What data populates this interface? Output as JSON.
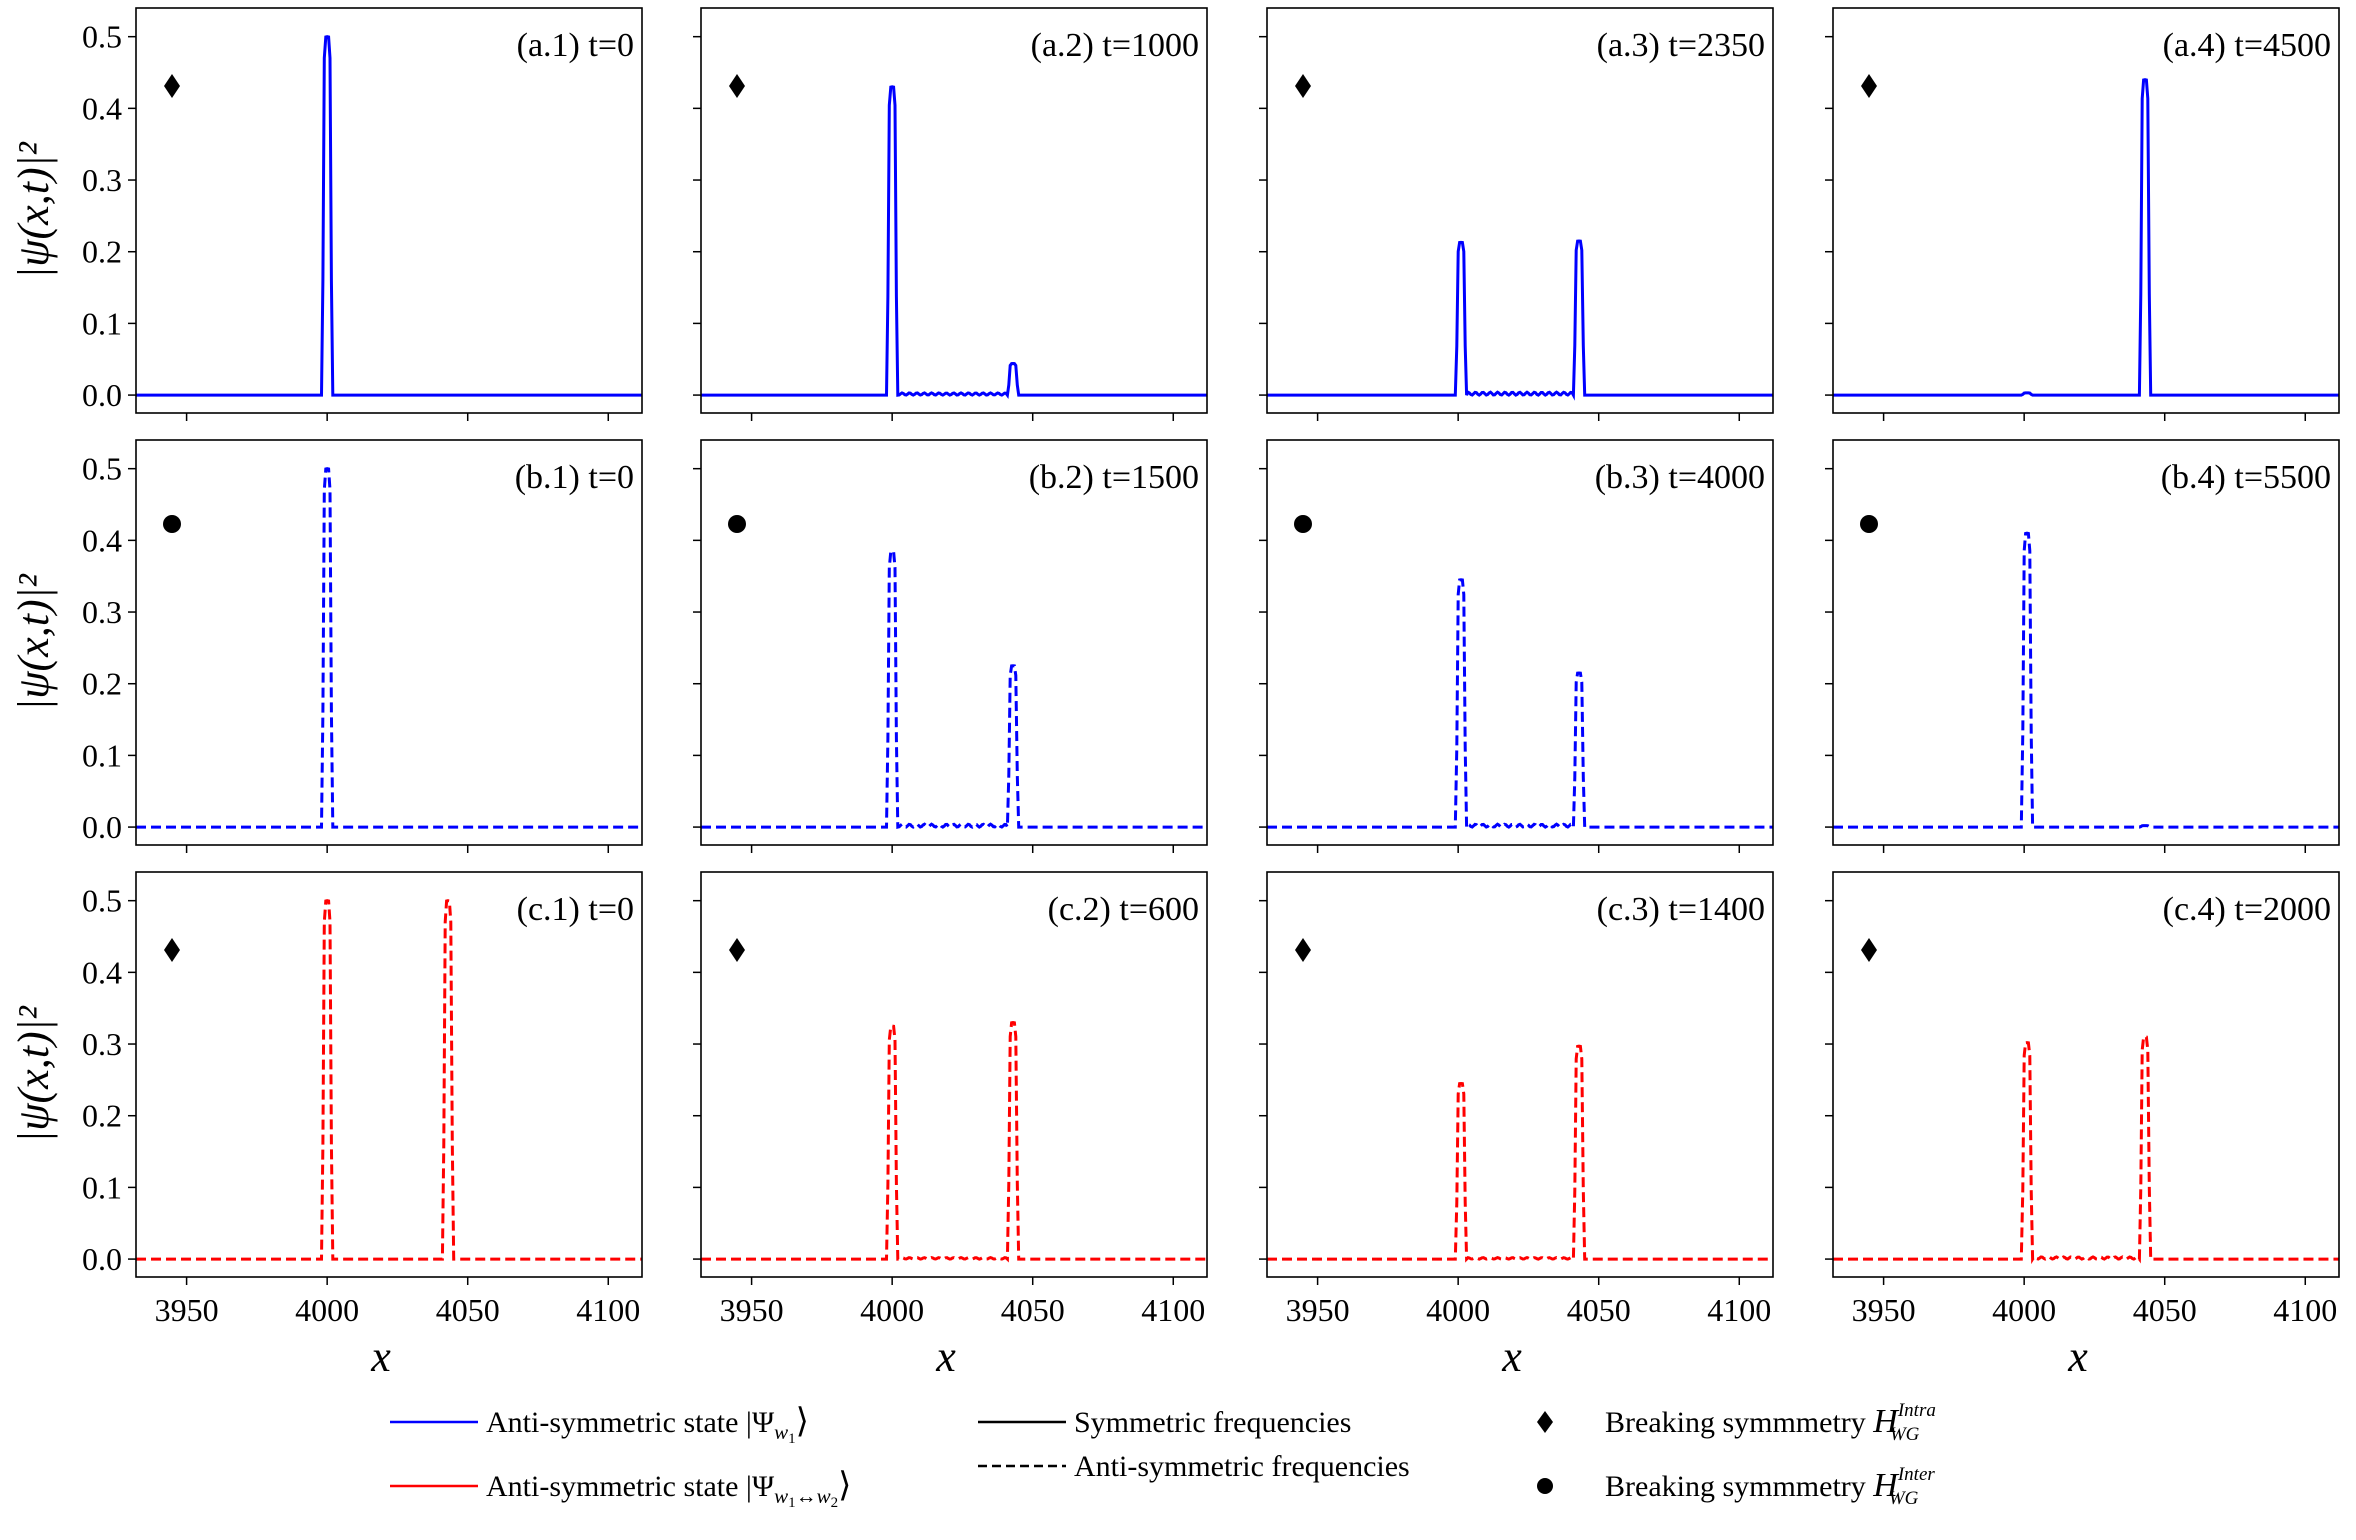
{
  "chart_data": {
    "type": "line",
    "layout": "3 rows x 4 columns",
    "xlabel": "x",
    "ylabel": "|ψ(x,t)|²",
    "xlim": [
      3932,
      4112
    ],
    "ylim": [
      -0.025,
      0.54
    ],
    "xticks": [
      3950,
      4000,
      4050,
      4100
    ],
    "yticks": [
      0.0,
      0.1,
      0.2,
      0.3,
      0.4,
      0.5
    ],
    "ytick_labels": [
      "0.0",
      "0.1",
      "0.2",
      "0.3",
      "0.4",
      "0.5"
    ],
    "colors": {
      "blue": "#0000ff",
      "red": "#ff0000",
      "black": "#000000"
    },
    "panels": [
      {
        "id": "a1",
        "label": "(a.1) t=0",
        "color": "#0000ff",
        "style": "solid",
        "marker": "diamond",
        "peaks": [
          [
            4000,
            0.5
          ]
        ],
        "ripple": 0.0
      },
      {
        "id": "a2",
        "label": "(a.2) t=1000",
        "color": "#0000ff",
        "style": "solid",
        "marker": "diamond",
        "peaks": [
          [
            4000,
            0.43
          ],
          [
            4043,
            0.044
          ]
        ],
        "ripple": 0.003
      },
      {
        "id": "a3",
        "label": "(a.3) t=2350",
        "color": "#0000ff",
        "style": "solid",
        "marker": "diamond",
        "peaks": [
          [
            4001,
            0.213
          ],
          [
            4043,
            0.215
          ]
        ],
        "ripple": 0.004
      },
      {
        "id": "a4",
        "label": "(a.4) t=4500",
        "color": "#0000ff",
        "style": "solid",
        "marker": "diamond",
        "peaks": [
          [
            4001,
            0.003
          ],
          [
            4043,
            0.44
          ]
        ],
        "ripple": 0.0
      },
      {
        "id": "b1",
        "label": "(b.1) t=0",
        "color": "#0000ff",
        "style": "dashed",
        "marker": "circle",
        "peaks": [
          [
            4000,
            0.5
          ]
        ],
        "ripple": 0.0
      },
      {
        "id": "b2",
        "label": "(b.2) t=1500",
        "color": "#0000ff",
        "style": "dashed",
        "marker": "circle",
        "peaks": [
          [
            4000,
            0.385
          ],
          [
            4043,
            0.225
          ]
        ],
        "ripple": 0.004
      },
      {
        "id": "b3",
        "label": "(b.3) t=4000",
        "color": "#0000ff",
        "style": "dashed",
        "marker": "circle",
        "peaks": [
          [
            4001,
            0.345
          ],
          [
            4043,
            0.215
          ]
        ],
        "ripple": 0.004
      },
      {
        "id": "b4",
        "label": "(b.4) t=5500",
        "color": "#0000ff",
        "style": "dashed",
        "marker": "circle",
        "peaks": [
          [
            4001,
            0.41
          ],
          [
            4043,
            0.002
          ]
        ],
        "ripple": 0.0
      },
      {
        "id": "c1",
        "label": "(c.1) t=0",
        "color": "#ff0000",
        "style": "dashed",
        "marker": "diamond",
        "peaks": [
          [
            4000,
            0.5
          ],
          [
            4043,
            0.5
          ]
        ],
        "ripple": 0.0
      },
      {
        "id": "c2",
        "label": "(c.2) t=600",
        "color": "#ff0000",
        "style": "dashed",
        "marker": "diamond",
        "peaks": [
          [
            4000,
            0.325
          ],
          [
            4043,
            0.33
          ]
        ],
        "ripple": 0.002
      },
      {
        "id": "c3",
        "label": "(c.3) t=1400",
        "color": "#ff0000",
        "style": "dashed",
        "marker": "diamond",
        "peaks": [
          [
            4001,
            0.245
          ],
          [
            4043,
            0.297
          ]
        ],
        "ripple": 0.002
      },
      {
        "id": "c4",
        "label": "(c.4) t=2000",
        "color": "#ff0000",
        "style": "dashed",
        "marker": "diamond",
        "peaks": [
          [
            4001,
            0.302
          ],
          [
            4043,
            0.31
          ]
        ],
        "ripple": 0.003
      }
    ],
    "legend": {
      "placement": "bottom",
      "entries": [
        {
          "kind": "line",
          "color": "#0000ff",
          "style": "solid",
          "prefix": "Anti-symmetric state |Ψ",
          "sub": "w",
          "subsub": "1",
          "suffix": "⟩"
        },
        {
          "kind": "line",
          "color": "#ff0000",
          "style": "solid",
          "prefix": "Anti-symmetric state |Ψ",
          "sub": "w",
          "subsub": "1",
          "subrest": "↔w",
          "subsub2": "2",
          "suffix": "⟩"
        },
        {
          "kind": "line",
          "color": "#000000",
          "style": "solid",
          "text": "Symmetric frequencies"
        },
        {
          "kind": "line",
          "color": "#000000",
          "style": "dashed",
          "text": "Anti-symmetric frequencies"
        },
        {
          "kind": "marker",
          "marker": "diamond",
          "prefix": "Breaking symmmetry ",
          "sym": "H",
          "sub": "WG",
          "sup": "Intra"
        },
        {
          "kind": "marker",
          "marker": "circle",
          "prefix": "Breaking symmmetry ",
          "sym": "H",
          "sub": "WG",
          "sup": "Inter"
        }
      ]
    }
  }
}
